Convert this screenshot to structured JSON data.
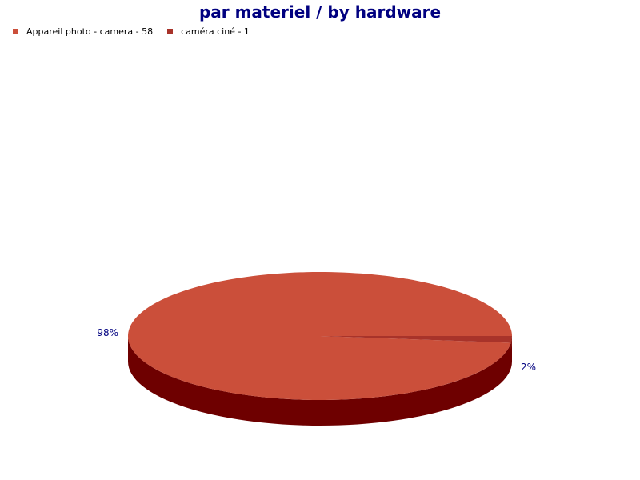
{
  "chart_data": {
    "type": "pie",
    "title": "par materiel / by hardware",
    "legend_placement": "top-left",
    "categories": [
      "Appareil photo - camera - 58",
      "caméra ciné - 1"
    ],
    "values": [
      58,
      1
    ],
    "percent_labels": [
      "98%",
      "2%"
    ],
    "colors": [
      "#cb4f3a",
      "#a8332a"
    ],
    "side_color": "#6e0000",
    "label_color": "#000080",
    "pie_style": "3d"
  }
}
